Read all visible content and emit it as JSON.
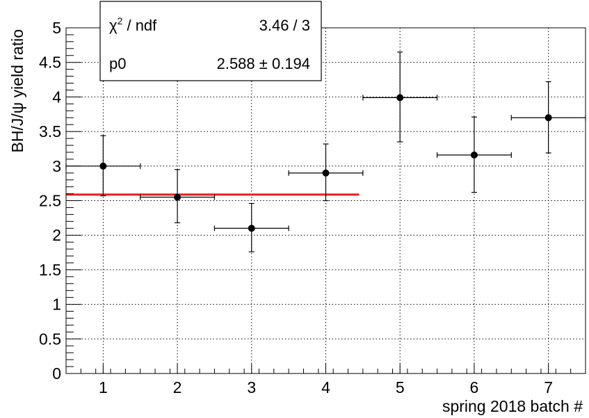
{
  "chart_data": {
    "type": "scatter",
    "xlabel": "spring 2018 batch #",
    "ylabel": "BH/J/ψ yield ratio",
    "xlim": [
      0.5,
      7.5
    ],
    "ylim": [
      0,
      5
    ],
    "grid": true,
    "x_ticks": [
      "1",
      "2",
      "3",
      "4",
      "5",
      "6",
      "7"
    ],
    "y_ticks": [
      "0",
      "0.5",
      "1",
      "1.5",
      "2",
      "2.5",
      "3",
      "3.5",
      "4",
      "4.5",
      "5"
    ],
    "points": [
      {
        "x": 1,
        "y": 3.0,
        "xerr": 0.5,
        "yerr_up": 0.44,
        "yerr_down": 0.43
      },
      {
        "x": 2,
        "y": 2.55,
        "xerr": 0.5,
        "yerr_up": 0.4,
        "yerr_down": 0.37
      },
      {
        "x": 3,
        "y": 2.1,
        "xerr": 0.5,
        "yerr_up": 0.36,
        "yerr_down": 0.34
      },
      {
        "x": 4,
        "y": 2.9,
        "xerr": 0.5,
        "yerr_up": 0.42,
        "yerr_down": 0.4
      },
      {
        "x": 5,
        "y": 3.99,
        "xerr": 0.5,
        "yerr_up": 0.66,
        "yerr_down": 0.64
      },
      {
        "x": 6,
        "y": 3.16,
        "xerr": 0.5,
        "yerr_up": 0.55,
        "yerr_down": 0.54
      },
      {
        "x": 7,
        "y": 3.7,
        "xerr": 0.5,
        "yerr_up": 0.52,
        "yerr_down": 0.51
      }
    ],
    "fit": {
      "x_range": [
        0.5,
        4.45
      ],
      "value": 2.588,
      "color": "#e8201e"
    },
    "stats_box": {
      "row1_label_chi": "χ",
      "row1_label_sup": "2",
      "row1_label_rest": " / ndf",
      "row1_value": "3.46 / 3",
      "row2_label": "p0",
      "row2_value": "2.588 ± 0.194"
    }
  }
}
